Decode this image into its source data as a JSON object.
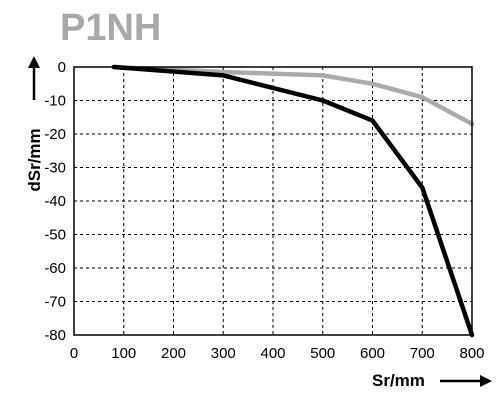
{
  "chart_data": {
    "type": "line",
    "title": "P1NH",
    "xlabel": "Sr/mm",
    "ylabel": "dSr/mm",
    "xlim": [
      0,
      800
    ],
    "ylim": [
      -80,
      0
    ],
    "grid": true,
    "x_ticks": [
      "0",
      "100",
      "200",
      "300",
      "400",
      "500",
      "600",
      "700",
      "800"
    ],
    "y_ticks": [
      "0",
      "-10",
      "-20",
      "-30",
      "-40",
      "-50",
      "-60",
      "-70",
      "-80"
    ],
    "series": [
      {
        "color": "#aaaaaa",
        "points": [
          [
            80,
            0
          ],
          [
            300,
            -1.5
          ],
          [
            500,
            -2.5
          ],
          [
            600,
            -5
          ],
          [
            700,
            -9
          ],
          [
            800,
            -17
          ]
        ]
      },
      {
        "color": "#000000",
        "points": [
          [
            80,
            0
          ],
          [
            300,
            -2.5
          ],
          [
            500,
            -10
          ],
          [
            600,
            -16
          ],
          [
            700,
            -36
          ],
          [
            800,
            -80
          ]
        ]
      }
    ]
  }
}
